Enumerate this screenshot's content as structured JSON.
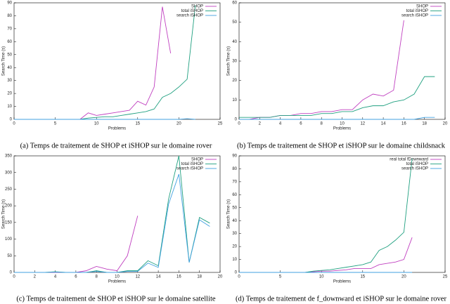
{
  "chart_data": [
    {
      "type": "line",
      "caption": "(a) Temps de traitement de SHOP et iSHOP sur le domaine rover",
      "xlabel": "Problems",
      "ylabel": "Search Time (s)",
      "x": [
        0,
        1,
        2,
        3,
        4,
        5,
        6,
        7,
        8,
        9,
        10,
        11,
        12,
        13,
        14,
        15,
        16,
        17,
        18,
        19,
        20,
        21,
        22
      ],
      "series": [
        {
          "name": "SHOP",
          "color": "#c040c0",
          "values": [
            0,
            0,
            0,
            0,
            0,
            0,
            0,
            0,
            0,
            5,
            3,
            4,
            5,
            6,
            7,
            14,
            11,
            25,
            87,
            51,
            null,
            null,
            null
          ]
        },
        {
          "name": "total iSHOP",
          "color": "#20a080",
          "values": [
            0,
            0,
            0,
            0,
            0,
            0,
            0,
            0,
            0,
            1,
            1.5,
            2,
            2,
            3,
            4,
            5,
            6,
            8,
            17,
            20,
            25,
            31,
            88
          ]
        },
        {
          "name": "search iSHOP",
          "color": "#40a0e0",
          "values": [
            0,
            0,
            0,
            0,
            0,
            0,
            0,
            0,
            0,
            0,
            0,
            0,
            0,
            0,
            0,
            0,
            0,
            0,
            0,
            0,
            0,
            0.5,
            0
          ]
        }
      ],
      "xlim": [
        0,
        25
      ],
      "xticks": [
        0,
        5,
        10,
        15,
        20,
        25
      ],
      "ylim": [
        0,
        90
      ],
      "yticks": [
        0,
        10,
        20,
        30,
        40,
        50,
        60,
        70,
        80,
        90
      ],
      "grid": false,
      "legend": "top-right"
    },
    {
      "type": "line",
      "caption": "(b) Temps de traitement de SHOP et iSHOP sur le domaine childsnack",
      "xlabel": "Problems",
      "ylabel": "Search Time (s)",
      "x": [
        0,
        1,
        2,
        3,
        4,
        5,
        6,
        7,
        8,
        9,
        10,
        11,
        12,
        13,
        14,
        15,
        16,
        17,
        18,
        19
      ],
      "series": [
        {
          "name": "SHOP",
          "color": "#c040c0",
          "values": [
            0,
            0,
            1,
            1,
            2,
            2,
            3,
            3,
            4,
            4,
            5,
            5,
            10,
            13,
            12,
            15,
            51,
            null,
            null,
            null
          ]
        },
        {
          "name": "total iSHOP",
          "color": "#20a080",
          "values": [
            1,
            1,
            1,
            1,
            2,
            2,
            2,
            2,
            3,
            3,
            4,
            4,
            6,
            7,
            7,
            9,
            10,
            13,
            22,
            22
          ]
        },
        {
          "name": "search iSHOP",
          "color": "#40a0e0",
          "values": [
            0,
            0,
            0,
            0,
            0,
            0,
            0,
            0,
            0,
            0,
            0,
            0,
            0,
            0,
            0,
            0,
            0,
            0,
            1,
            1
          ]
        }
      ],
      "xlim": [
        0,
        20
      ],
      "xticks": [
        0,
        2,
        4,
        6,
        8,
        10,
        12,
        14,
        16,
        18,
        20
      ],
      "ylim": [
        0,
        60
      ],
      "yticks": [
        0,
        10,
        20,
        30,
        40,
        50,
        60
      ],
      "grid": false,
      "legend": "top-right"
    },
    {
      "type": "line",
      "caption": "(c) Temps de traitement de SHOP et iSHOP sur le domaine satellite",
      "xlabel": "Problems",
      "ylabel": "Search Time (s)",
      "x": [
        0,
        1,
        2,
        3,
        4,
        5,
        6,
        7,
        8,
        9,
        10,
        11,
        12,
        13,
        14,
        15,
        16,
        17,
        18,
        19
      ],
      "series": [
        {
          "name": "SHOP",
          "color": "#c040c0",
          "values": [
            0,
            0,
            0,
            0,
            0,
            0,
            0,
            5,
            18,
            10,
            5,
            50,
            170,
            null,
            null,
            null,
            null,
            null,
            null,
            null
          ]
        },
        {
          "name": "total iSHOP",
          "color": "#20a080",
          "values": [
            0,
            0,
            0,
            0,
            2,
            0,
            0,
            0,
            5,
            0,
            0,
            5,
            5,
            35,
            20,
            220,
            350,
            30,
            165,
            148
          ]
        },
        {
          "name": "search iSHOP",
          "color": "#40a0e0",
          "values": [
            0,
            0,
            0,
            0,
            1,
            0,
            0,
            0,
            3,
            0,
            0,
            3,
            3,
            28,
            15,
            205,
            295,
            30,
            158,
            138
          ]
        }
      ],
      "xlim": [
        0,
        20
      ],
      "xticks": [
        0,
        2,
        4,
        6,
        8,
        10,
        12,
        14,
        16,
        18,
        20
      ],
      "ylim": [
        0,
        350
      ],
      "yticks": [
        0,
        50,
        100,
        150,
        200,
        250,
        300,
        350
      ],
      "grid": false,
      "legend": "top-right"
    },
    {
      "type": "line",
      "caption": "(d) Temps de traitement de f_downward et iSHOP sur le domaine rover",
      "xlabel": "Problems",
      "ylabel": "Search Time (s)",
      "x": [
        0,
        1,
        2,
        3,
        4,
        5,
        6,
        7,
        8,
        9,
        10,
        11,
        12,
        13,
        14,
        15,
        16,
        17,
        18,
        19,
        20,
        21
      ],
      "series": [
        {
          "name": "real total fDownward",
          "color": "#c040c0",
          "values": [
            0,
            0,
            0,
            0,
            0,
            0,
            0,
            0,
            0,
            0.5,
            1,
            1,
            1.5,
            2,
            3,
            3,
            3,
            6,
            7,
            8,
            10,
            27
          ]
        },
        {
          "name": "total iSHOP",
          "color": "#20a080",
          "values": [
            0,
            0,
            0,
            0,
            0,
            0,
            0,
            0,
            0,
            1,
            1.5,
            2,
            3,
            4,
            5,
            6,
            8,
            17,
            20,
            25,
            31,
            88
          ]
        },
        {
          "name": "search iSHOP",
          "color": "#40a0e0",
          "values": [
            0,
            0,
            0,
            0,
            0,
            0,
            0,
            0,
            0,
            0,
            0,
            0,
            0,
            0,
            0,
            0,
            0,
            0,
            0,
            0,
            0,
            0
          ]
        }
      ],
      "xlim": [
        0,
        25
      ],
      "xticks": [
        0,
        5,
        10,
        15,
        20,
        25
      ],
      "ylim": [
        0,
        90
      ],
      "yticks": [
        0,
        10,
        20,
        30,
        40,
        50,
        60,
        70,
        80,
        90
      ],
      "grid": false,
      "legend": "top-right"
    }
  ]
}
